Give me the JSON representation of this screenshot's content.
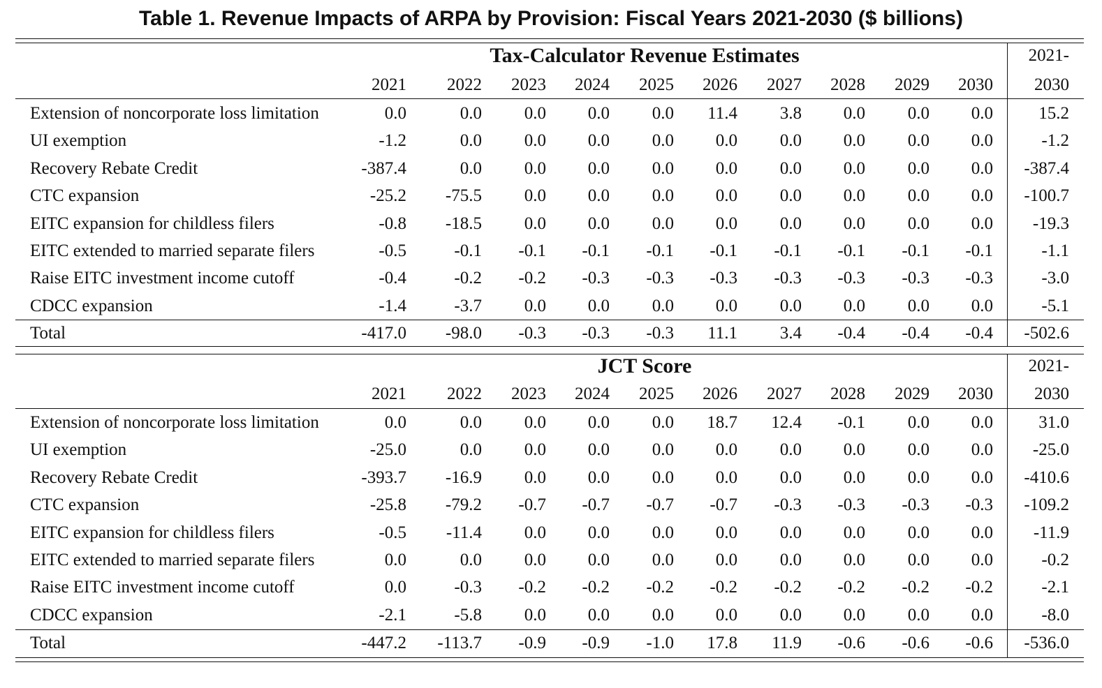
{
  "title": "Table 1. Revenue Impacts of ARPA by Provision: Fiscal Years 2021-2030 ($ billions)",
  "years": [
    "2021",
    "2022",
    "2023",
    "2024",
    "2025",
    "2026",
    "2027",
    "2028",
    "2029",
    "2030"
  ],
  "total_header_top": "2021-",
  "total_header_bottom": "2030",
  "sections": [
    {
      "title": "Tax-Calculator Revenue Estimates",
      "rows": [
        {
          "label": "Extension of noncorporate loss limitation",
          "values": [
            "0.0",
            "0.0",
            "0.0",
            "0.0",
            "0.0",
            "11.4",
            "3.8",
            "0.0",
            "0.0",
            "0.0"
          ],
          "total": "15.2"
        },
        {
          "label": "UI exemption",
          "values": [
            "-1.2",
            "0.0",
            "0.0",
            "0.0",
            "0.0",
            "0.0",
            "0.0",
            "0.0",
            "0.0",
            "0.0"
          ],
          "total": "-1.2"
        },
        {
          "label": "Recovery Rebate Credit",
          "values": [
            "-387.4",
            "0.0",
            "0.0",
            "0.0",
            "0.0",
            "0.0",
            "0.0",
            "0.0",
            "0.0",
            "0.0"
          ],
          "total": "-387.4"
        },
        {
          "label": "CTC expansion",
          "values": [
            "-25.2",
            "-75.5",
            "0.0",
            "0.0",
            "0.0",
            "0.0",
            "0.0",
            "0.0",
            "0.0",
            "0.0"
          ],
          "total": "-100.7"
        },
        {
          "label": "EITC expansion for childless filers",
          "values": [
            "-0.8",
            "-18.5",
            "0.0",
            "0.0",
            "0.0",
            "0.0",
            "0.0",
            "0.0",
            "0.0",
            "0.0"
          ],
          "total": "-19.3"
        },
        {
          "label": "EITC extended to married separate filers",
          "values": [
            "-0.5",
            "-0.1",
            "-0.1",
            "-0.1",
            "-0.1",
            "-0.1",
            "-0.1",
            "-0.1",
            "-0.1",
            "-0.1"
          ],
          "total": "-1.1"
        },
        {
          "label": "Raise EITC investment income cutoff",
          "values": [
            "-0.4",
            "-0.2",
            "-0.2",
            "-0.3",
            "-0.3",
            "-0.3",
            "-0.3",
            "-0.3",
            "-0.3",
            "-0.3"
          ],
          "total": "-3.0"
        },
        {
          "label": "CDCC expansion",
          "values": [
            "-1.4",
            "-3.7",
            "0.0",
            "0.0",
            "0.0",
            "0.0",
            "0.0",
            "0.0",
            "0.0",
            "0.0"
          ],
          "total": "-5.1"
        }
      ],
      "total_row": {
        "label": "Total",
        "values": [
          "-417.0",
          "-98.0",
          "-0.3",
          "-0.3",
          "-0.3",
          "11.1",
          "3.4",
          "-0.4",
          "-0.4",
          "-0.4"
        ],
        "total": "-502.6"
      }
    },
    {
      "title": "JCT Score",
      "rows": [
        {
          "label": "Extension of noncorporate loss limitation",
          "values": [
            "0.0",
            "0.0",
            "0.0",
            "0.0",
            "0.0",
            "18.7",
            "12.4",
            "-0.1",
            "0.0",
            "0.0"
          ],
          "total": "31.0"
        },
        {
          "label": "UI exemption",
          "values": [
            "-25.0",
            "0.0",
            "0.0",
            "0.0",
            "0.0",
            "0.0",
            "0.0",
            "0.0",
            "0.0",
            "0.0"
          ],
          "total": "-25.0"
        },
        {
          "label": "Recovery Rebate Credit",
          "values": [
            "-393.7",
            "-16.9",
            "0.0",
            "0.0",
            "0.0",
            "0.0",
            "0.0",
            "0.0",
            "0.0",
            "0.0"
          ],
          "total": "-410.6"
        },
        {
          "label": "CTC expansion",
          "values": [
            "-25.8",
            "-79.2",
            "-0.7",
            "-0.7",
            "-0.7",
            "-0.7",
            "-0.3",
            "-0.3",
            "-0.3",
            "-0.3"
          ],
          "total": "-109.2"
        },
        {
          "label": "EITC expansion for childless filers",
          "values": [
            "-0.5",
            "-11.4",
            "0.0",
            "0.0",
            "0.0",
            "0.0",
            "0.0",
            "0.0",
            "0.0",
            "0.0"
          ],
          "total": "-11.9"
        },
        {
          "label": "EITC extended to married separate filers",
          "values": [
            "0.0",
            "0.0",
            "0.0",
            "0.0",
            "0.0",
            "0.0",
            "0.0",
            "0.0",
            "0.0",
            "0.0"
          ],
          "total": "-0.2"
        },
        {
          "label": "Raise EITC investment income cutoff",
          "values": [
            "0.0",
            "-0.3",
            "-0.2",
            "-0.2",
            "-0.2",
            "-0.2",
            "-0.2",
            "-0.2",
            "-0.2",
            "-0.2"
          ],
          "total": "-2.1"
        },
        {
          "label": "CDCC expansion",
          "values": [
            "-2.1",
            "-5.8",
            "0.0",
            "0.0",
            "0.0",
            "0.0",
            "0.0",
            "0.0",
            "0.0",
            "0.0"
          ],
          "total": "-8.0"
        }
      ],
      "total_row": {
        "label": "Total",
        "values": [
          "-447.2",
          "-113.7",
          "-0.9",
          "-0.9",
          "-1.0",
          "17.8",
          "11.9",
          "-0.6",
          "-0.6",
          "-0.6"
        ],
        "total": "-536.0"
      }
    }
  ]
}
